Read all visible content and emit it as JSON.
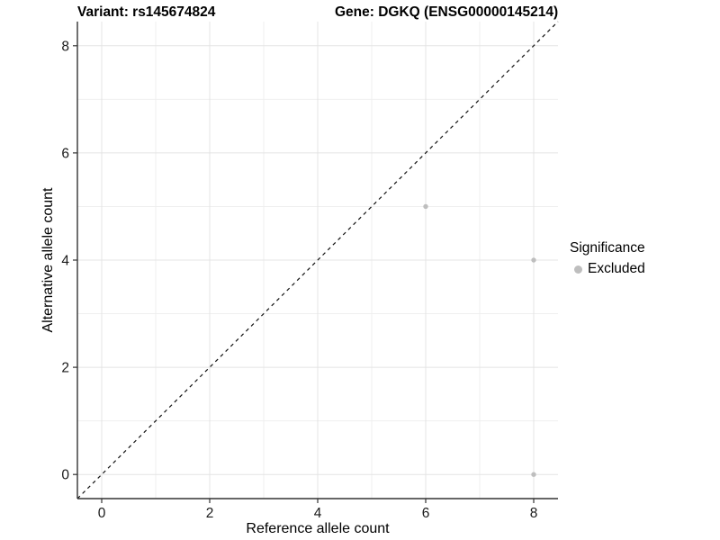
{
  "chart_data": {
    "type": "scatter",
    "title_left": "Variant: rs145674824",
    "title_right": "Gene: DGKQ (ENSG00000145214)",
    "xlabel": "Reference allele count",
    "ylabel": "Alternative allele count",
    "xlim": [
      -0.45,
      8.45
    ],
    "ylim": [
      -0.45,
      8.45
    ],
    "xticks": [
      0,
      2,
      4,
      6,
      8
    ],
    "yticks": [
      0,
      2,
      4,
      6,
      8
    ],
    "minor_xticks": [
      1,
      3,
      5,
      7
    ],
    "minor_yticks": [
      1,
      3,
      5,
      7
    ],
    "grid": "major+minor",
    "identity_line": {
      "equation": "y = x",
      "style": "dashed",
      "color": "#111111"
    },
    "series": [
      {
        "name": "Excluded",
        "color": "#bebebe",
        "points": [
          {
            "x": 6,
            "y": 5
          },
          {
            "x": 8,
            "y": 4
          },
          {
            "x": 8,
            "y": 0
          }
        ]
      }
    ],
    "legend": {
      "title": "Significance",
      "position": "right",
      "entries": [
        {
          "label": "Excluded",
          "color": "#bebebe"
        }
      ]
    }
  },
  "colors": {
    "background": "#ffffff",
    "axis": "#333333",
    "tick_text": "#1a1a1a",
    "grid_major": "#e4e4e4",
    "grid_minor": "#efefef",
    "point": "#bebebe",
    "identity_line": "#111111"
  }
}
